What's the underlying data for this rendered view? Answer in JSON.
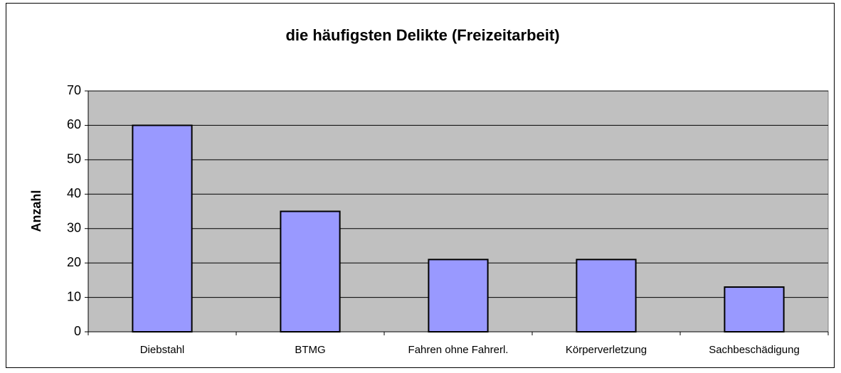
{
  "chart_data": {
    "type": "bar",
    "title": "die häufigsten Delikte (Freizeitarbeit)",
    "y_label": "Anzahl",
    "categories": [
      "Diebstahl",
      "BTMG",
      "Fahren ohne Fahrerl.",
      "Körperverletzung",
      "Sachbeschädigung"
    ],
    "values": [
      60,
      35,
      21,
      21,
      13
    ],
    "color": "#9999ff",
    "ylim": [
      0,
      70
    ],
    "yticks": [
      0,
      10,
      20,
      30,
      40,
      50,
      60,
      70
    ],
    "grid": true
  }
}
